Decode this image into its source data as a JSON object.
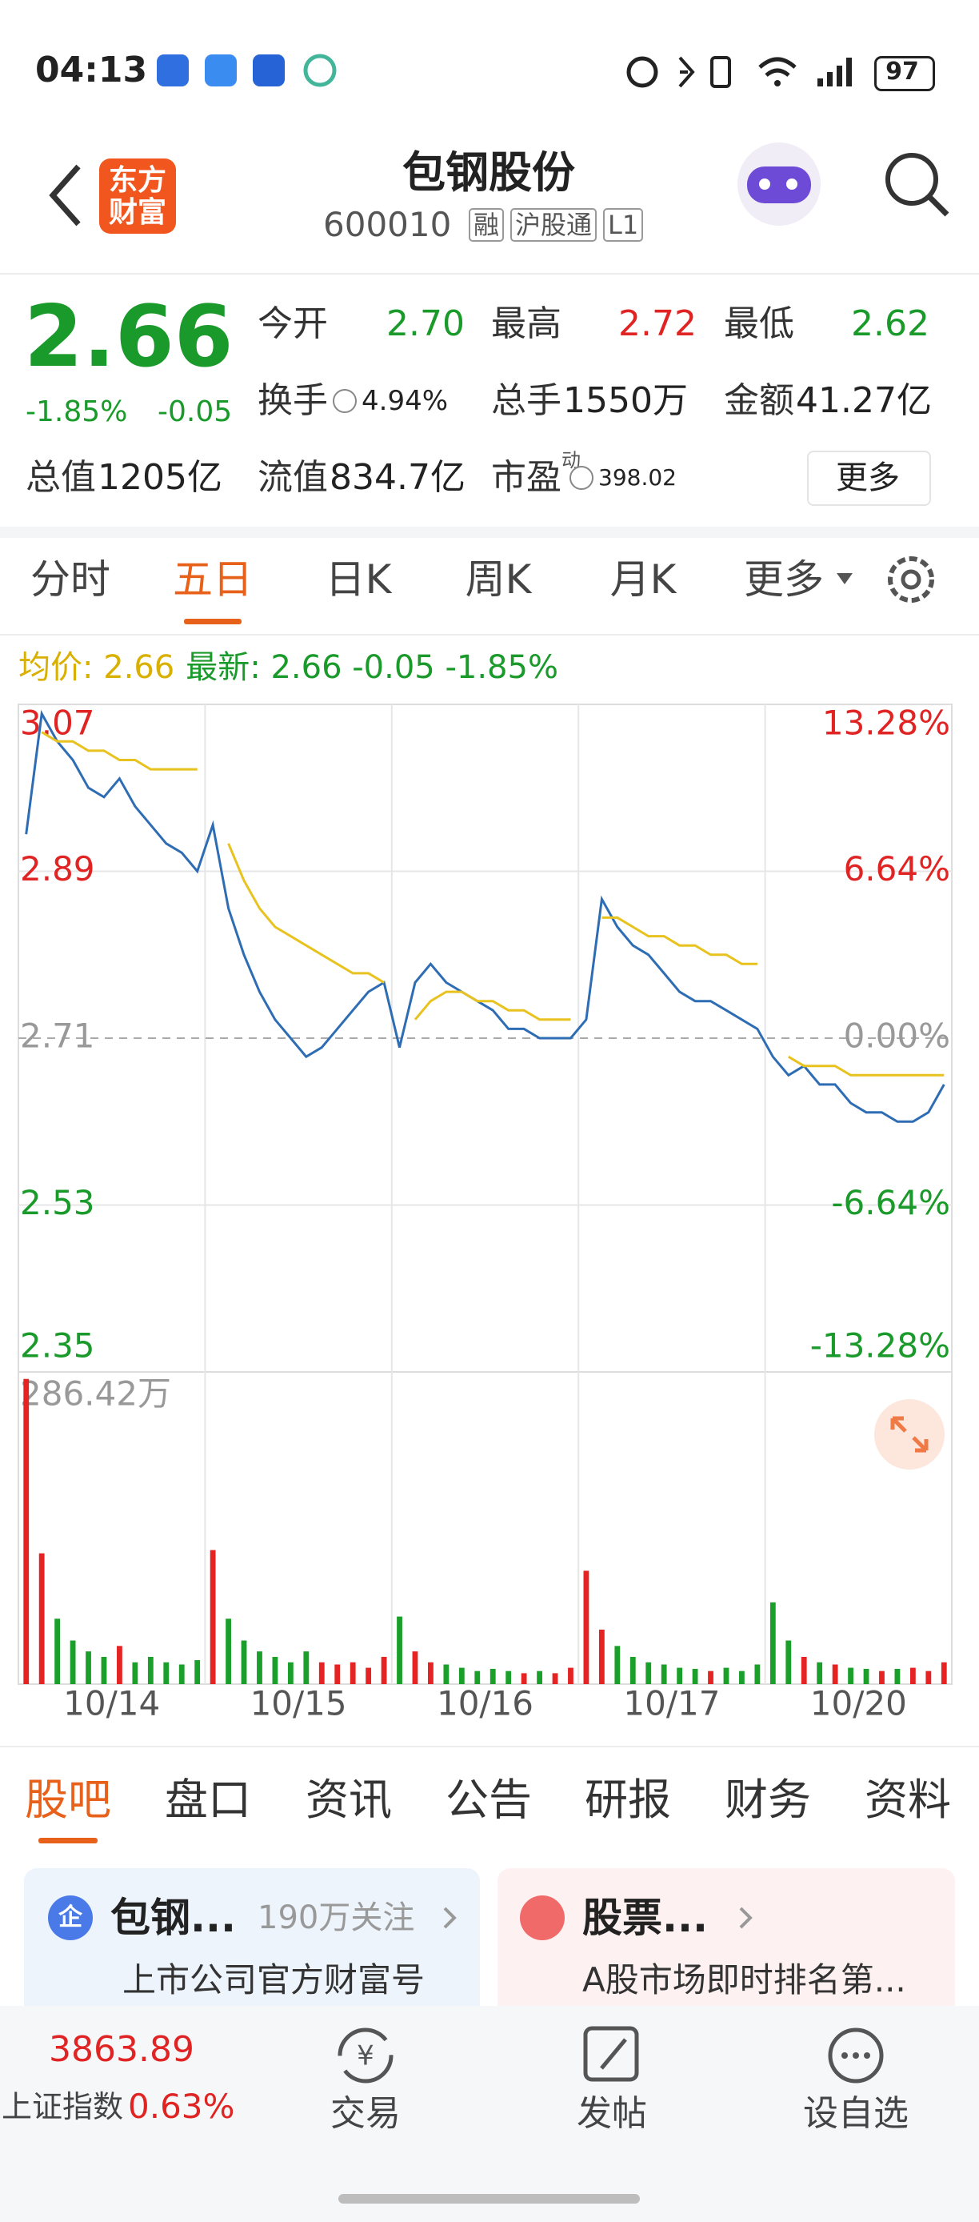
{
  "status_bar": {
    "time": "04:13",
    "battery": "97"
  },
  "header": {
    "logo": [
      "东方",
      "财富"
    ],
    "title": "包钢股份",
    "code": "600010",
    "badges": [
      "融",
      "沪股通",
      "L1"
    ]
  },
  "quote": {
    "price": "2.66",
    "change_pct": "-1.85%",
    "change": "-0.05",
    "stats": [
      {
        "label": "今开",
        "value": "2.70",
        "color": "#1a9a2a"
      },
      {
        "label": "最高",
        "value": "2.72",
        "color": "#e02424"
      },
      {
        "label": "最低",
        "value": "2.62",
        "color": "#1a9a2a"
      },
      {
        "label": "换手",
        "value": "4.94%"
      },
      {
        "label": "总手",
        "value": "1550万"
      },
      {
        "label": "金额",
        "value": "41.27亿"
      },
      {
        "label": "总值",
        "value": "1205亿"
      },
      {
        "label": "流值",
        "value": "834.7亿"
      },
      {
        "label": "市盈",
        "sup": "动",
        "value": "398.02"
      }
    ],
    "more": "更多"
  },
  "tabs": {
    "items": [
      "分时",
      "五日",
      "日K",
      "周K",
      "月K",
      "更多"
    ],
    "active": 1
  },
  "chart_data": [
    {
      "type": "line",
      "legend": [
        {
          "text": "均价: 2.66",
          "color": "#d9b000"
        },
        {
          "text": "最新: 2.66 -0.05 -1.85%",
          "color": "#1a9a2a"
        }
      ],
      "x_labels": [
        "10/14",
        "10/15",
        "10/16",
        "10/17",
        "10/20"
      ],
      "series": [
        {
          "color": "#2e6db4",
          "values": [
            2.93,
            3.06,
            3.03,
            3.01,
            2.98,
            2.97,
            2.99,
            2.96,
            2.94,
            2.92,
            2.91,
            2.89,
            2.94,
            2.85,
            2.8,
            2.76,
            2.73,
            2.71,
            2.69,
            2.7,
            2.72,
            2.74,
            2.76,
            2.77,
            2.7,
            2.77,
            2.79,
            2.77,
            2.76,
            2.75,
            2.74,
            2.72,
            2.72,
            2.71,
            2.71,
            2.71,
            2.73,
            2.86,
            2.83,
            2.81,
            2.8,
            2.78,
            2.76,
            2.75,
            2.75,
            2.74,
            2.73,
            2.72,
            2.69,
            2.67,
            2.68,
            2.66,
            2.66,
            2.64,
            2.63,
            2.63,
            2.62,
            2.62,
            2.63,
            2.66
          ]
        },
        {
          "color": "#e8c21e",
          "values": [
            null,
            3.04,
            3.03,
            3.03,
            3.02,
            3.02,
            3.01,
            3.01,
            3.0,
            3.0,
            3.0,
            3.0,
            null,
            2.92,
            2.88,
            2.85,
            2.83,
            2.82,
            2.81,
            2.8,
            2.79,
            2.78,
            2.78,
            2.77,
            null,
            2.73,
            2.75,
            2.76,
            2.76,
            2.75,
            2.75,
            2.74,
            2.74,
            2.73,
            2.73,
            2.73,
            null,
            2.84,
            2.84,
            2.83,
            2.82,
            2.82,
            2.81,
            2.81,
            2.8,
            2.8,
            2.79,
            2.79,
            null,
            2.69,
            2.68,
            2.68,
            2.68,
            2.67,
            2.67,
            2.67,
            2.67,
            2.67,
            2.67,
            2.67
          ]
        }
      ],
      "ylim": [
        2.35,
        3.07
      ],
      "yticks": [
        2.35,
        2.53,
        2.71,
        2.89,
        3.07
      ],
      "y2lim": [
        -13.28,
        13.28
      ],
      "y2ticks": [
        {
          "value": -13.28,
          "label": "-13.28%"
        },
        {
          "value": -6.64,
          "label": "-6.64%"
        },
        {
          "value": 0,
          "label": "0.00%"
        },
        {
          "value": 6.64,
          "label": "6.64%"
        },
        {
          "value": 13.28,
          "label": "13.28%"
        }
      ],
      "grid": true
    },
    {
      "type": "bar",
      "ylim": [
        0,
        286.42
      ],
      "yticks": [
        {
          "value": 286.42,
          "label": "286.42万"
        }
      ],
      "up_color": "#e52323",
      "down_color": "#1aa02a",
      "values": [
        280,
        120,
        60,
        40,
        30,
        25,
        35,
        20,
        25,
        20,
        18,
        22,
        123,
        60,
        40,
        30,
        25,
        20,
        30,
        20,
        18,
        20,
        15,
        25,
        62,
        30,
        20,
        18,
        15,
        12,
        14,
        12,
        10,
        12,
        10,
        15,
        104,
        50,
        35,
        25,
        20,
        18,
        15,
        14,
        12,
        15,
        12,
        18,
        75,
        40,
        25,
        20,
        18,
        15,
        14,
        12,
        14,
        15,
        12,
        20
      ]
    }
  ],
  "bottom_tabs": {
    "items": [
      "股吧",
      "盘口",
      "资讯",
      "公告",
      "研报",
      "财务",
      "资料"
    ],
    "active": 0
  },
  "cards": [
    {
      "icon": "企",
      "title": "包钢...",
      "meta": "190万关注",
      "desc": "上市公司官方财富号"
    },
    {
      "title": "股票...",
      "desc": "A股市场即时排名第..."
    }
  ],
  "footer": {
    "index_value": "3863.89",
    "index_name": "上证指数",
    "index_change": "0.63%",
    "nav": [
      "交易",
      "发帖",
      "设自选"
    ]
  }
}
